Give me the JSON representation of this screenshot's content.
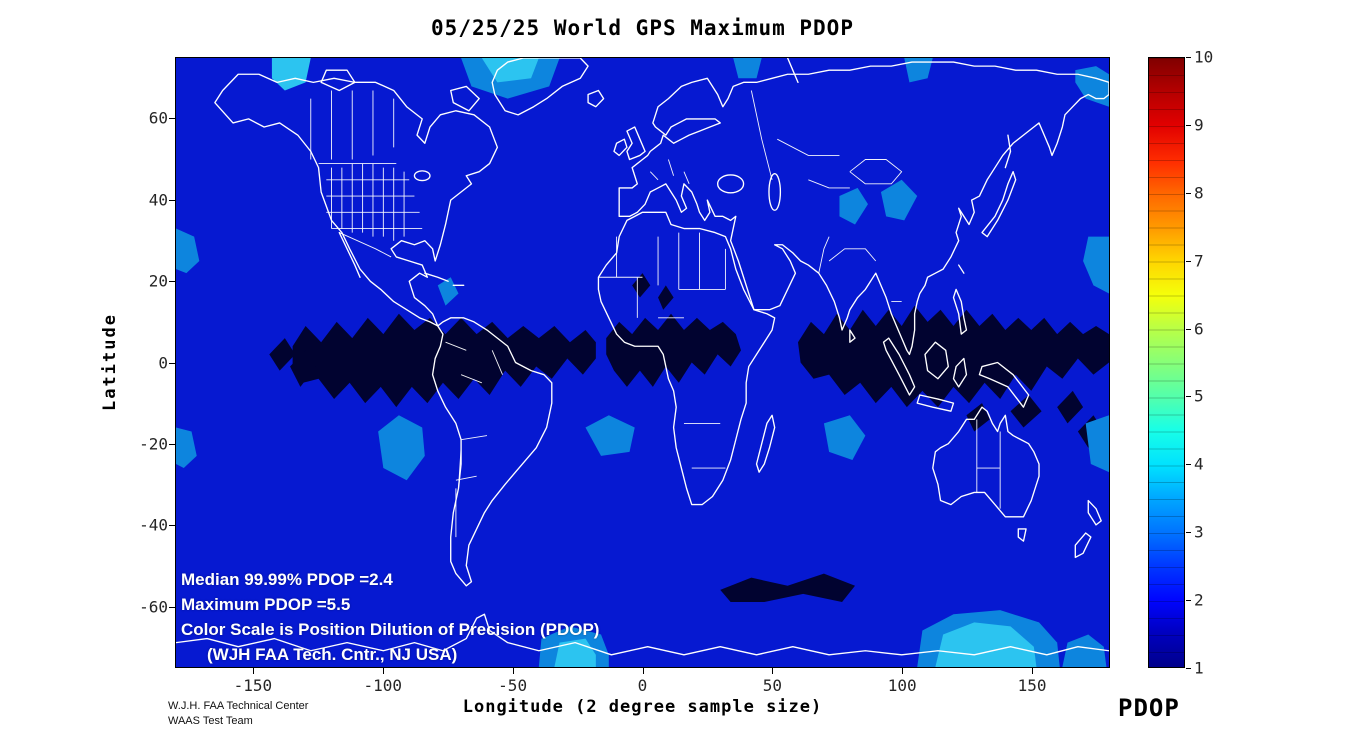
{
  "chart_data": {
    "type": "heatmap",
    "title": "05/25/25 World GPS Maximum PDOP",
    "xlabel": "Longitude (2 degree sample size)",
    "ylabel": "Latitude",
    "xlim": [
      -180,
      180
    ],
    "ylim": [
      -75,
      75
    ],
    "x_ticks": [
      -150,
      -100,
      -50,
      0,
      50,
      100,
      150
    ],
    "y_ticks": [
      60,
      40,
      20,
      0,
      -20,
      -40,
      -60
    ],
    "grid": false,
    "colorbar": {
      "label": "PDOP",
      "min": 1,
      "max": 10,
      "ticks": [
        1,
        2,
        3,
        4,
        5,
        6,
        7,
        8,
        9,
        10
      ],
      "colormap": "jet",
      "position": "right"
    },
    "stats": {
      "median_9999_pdop": 2.4,
      "maximum_pdop": 5.5
    },
    "annotations": [
      "Median 99.99% PDOP =2.4",
      "Maximum  PDOP =5.5",
      "Color Scale is Position Dilution of Precision (PDOP)",
      "(WJH FAA Tech. Cntr., NJ USA)"
    ],
    "palette": {
      "sea": "#0619D1",
      "dark": "#010330",
      "light": "#0D85DE",
      "cyan": "#2CC4F0",
      "coast": "#FFFFFF"
    },
    "regions": [
      {
        "pdop": 2,
        "color_key": "sea",
        "area": "global background over oceans and most land"
      },
      {
        "pdop": 1,
        "color_key": "dark",
        "area": "zigzag equatorial band lat ~ -12..12 spanning lon ~ -135..180, plus spot near lat -57, lon 30..85"
      },
      {
        "pdop": 3,
        "color_key": "light",
        "area": "scattered mid-latitude patches and map-edge patches"
      },
      {
        "pdop": 4,
        "color_key": "cyan",
        "area": "bright spots along top and bottom map edges"
      }
    ]
  },
  "footer": {
    "line1": "W.J.H. FAA Technical Center",
    "line2": "WAAS Test Team"
  }
}
